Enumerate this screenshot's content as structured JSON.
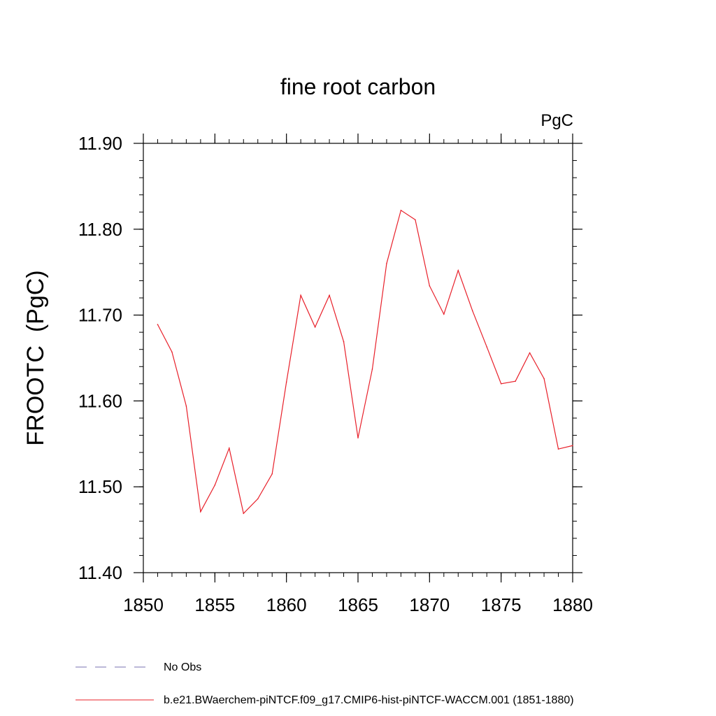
{
  "chart_data": {
    "type": "line",
    "title": "fine root carbon",
    "units": "PgC",
    "ylabel": "FROOTC  (PgC)",
    "xlabel": "",
    "xlim": [
      1850,
      1880
    ],
    "ylim": [
      11.4,
      11.9
    ],
    "xticks": [
      "1850",
      "1855",
      "1860",
      "1865",
      "1870",
      "1875",
      "1880"
    ],
    "yticks": [
      "11.40",
      "11.50",
      "11.60",
      "11.70",
      "11.80",
      "11.90"
    ],
    "grid": false,
    "legend_placement": "bottom",
    "series": [
      {
        "name": "b.e21.BWaerchem-piNTCF.f09_g17.CMIP6-hist-piNTCF-WACCM.001 (1851-1880)",
        "color": "#e8202a",
        "x": [
          1851,
          1852,
          1853,
          1854,
          1855,
          1856,
          1857,
          1858,
          1859,
          1860,
          1861,
          1862,
          1863,
          1864,
          1865,
          1866,
          1867,
          1868,
          1869,
          1870,
          1871,
          1872,
          1873,
          1874,
          1875,
          1876,
          1877,
          1878,
          1879,
          1880
        ],
        "y": [
          11.689,
          11.657,
          11.594,
          11.471,
          11.502,
          11.545,
          11.469,
          11.486,
          11.515,
          11.622,
          11.723,
          11.686,
          11.723,
          11.669,
          11.557,
          11.637,
          11.76,
          11.822,
          11.811,
          11.734,
          11.701,
          11.752,
          11.705,
          11.663,
          11.62,
          11.623,
          11.656,
          11.626,
          11.544,
          11.548
        ]
      }
    ],
    "legend": [
      {
        "label": "No Obs",
        "style": "dashed",
        "color": "#7a70b0"
      },
      {
        "label": "b.e21.BWaerchem-piNTCF.f09_g17.CMIP6-hist-piNTCF-WACCM.001 (1851-1880)",
        "style": "solid",
        "color": "#e8202a"
      }
    ]
  }
}
